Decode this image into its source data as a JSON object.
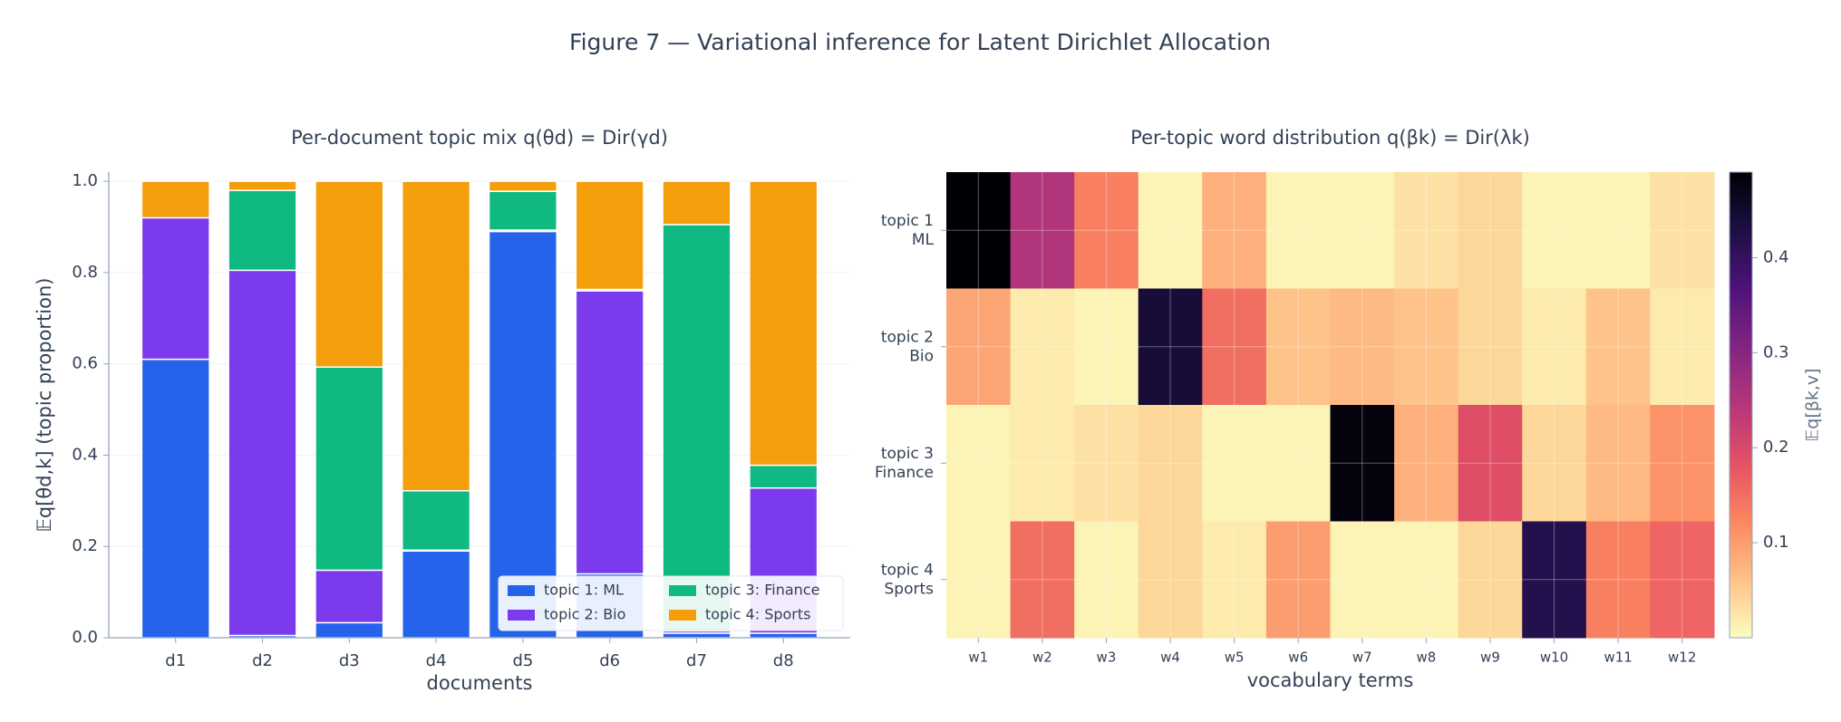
{
  "title": "Figure 7 — Variational inference for Latent Dirichlet Allocation",
  "chart_data": [
    {
      "type": "bar",
      "stacked": true,
      "title": "Per-document topic mix  q(θd) = Dir(γd)",
      "xlabel": "documents",
      "ylabel": "𝔼q[θd,k]  (topic proportion)",
      "categories": [
        "d1",
        "d2",
        "d3",
        "d4",
        "d5",
        "d6",
        "d7",
        "d8"
      ],
      "series": [
        {
          "name": "topic 1: ML",
          "color": "#2563eb",
          "values": [
            0.61,
            0.005,
            0.033,
            0.19,
            0.89,
            0.14,
            0.01,
            0.01
          ]
        },
        {
          "name": "topic 2: Bio",
          "color": "#7c3aed",
          "values": [
            0.31,
            0.8,
            0.115,
            0.002,
            0.003,
            0.62,
            0.005,
            0.318
          ]
        },
        {
          "name": "topic 3: Finance",
          "color": "#10b981",
          "values": [
            0.0,
            0.175,
            0.445,
            0.13,
            0.085,
            0.003,
            0.89,
            0.05
          ]
        },
        {
          "name": "topic 4: Sports",
          "color": "#f59e0b",
          "values": [
            0.08,
            0.02,
            0.407,
            0.678,
            0.022,
            0.237,
            0.095,
            0.622
          ]
        }
      ],
      "ylim": [
        0,
        1.02
      ],
      "yticks": [
        {
          "value": 0,
          "label": "0.0"
        },
        {
          "value": 0.2,
          "label": "0.2"
        },
        {
          "value": 0.4,
          "label": "0.4"
        },
        {
          "value": 0.6,
          "label": "0.6"
        },
        {
          "value": 0.8,
          "label": "0.8"
        },
        {
          "value": 1,
          "label": "1.0"
        }
      ],
      "grid": true,
      "legend": "lower right"
    },
    {
      "type": "heatmap",
      "title": "Per-topic word distribution  q(βk) = Dir(λk)",
      "xlabel": "vocabulary terms",
      "x": [
        "w1",
        "w2",
        "w3",
        "w4",
        "w5",
        "w6",
        "w7",
        "w8",
        "w9",
        "w10",
        "w11",
        "w12"
      ],
      "rows": [
        [
          "topic 1",
          "ML"
        ],
        [
          "topic 2",
          "Bio"
        ],
        [
          "topic 3",
          "Finance"
        ],
        [
          "topic 4",
          "Sports"
        ]
      ],
      "values": [
        [
          0.49,
          0.25,
          0.13,
          0.01,
          0.08,
          0.01,
          0.01,
          0.03,
          0.04,
          0.01,
          0.01,
          0.03
        ],
        [
          0.09,
          0.02,
          0.01,
          0.44,
          0.15,
          0.06,
          0.07,
          0.06,
          0.04,
          0.02,
          0.06,
          0.02
        ],
        [
          0.01,
          0.02,
          0.03,
          0.04,
          0.01,
          0.01,
          0.48,
          0.08,
          0.19,
          0.04,
          0.07,
          0.11
        ],
        [
          0.01,
          0.15,
          0.01,
          0.04,
          0.02,
          0.1,
          0.01,
          0.01,
          0.04,
          0.42,
          0.13,
          0.16
        ]
      ],
      "colormap": "magma_r",
      "zlim": [
        0,
        0.49
      ],
      "colorbar_label": "𝔼q[βk,v]",
      "colorbar_ticks": [
        0.1,
        0.2,
        0.3,
        0.4
      ],
      "grid": true
    }
  ]
}
